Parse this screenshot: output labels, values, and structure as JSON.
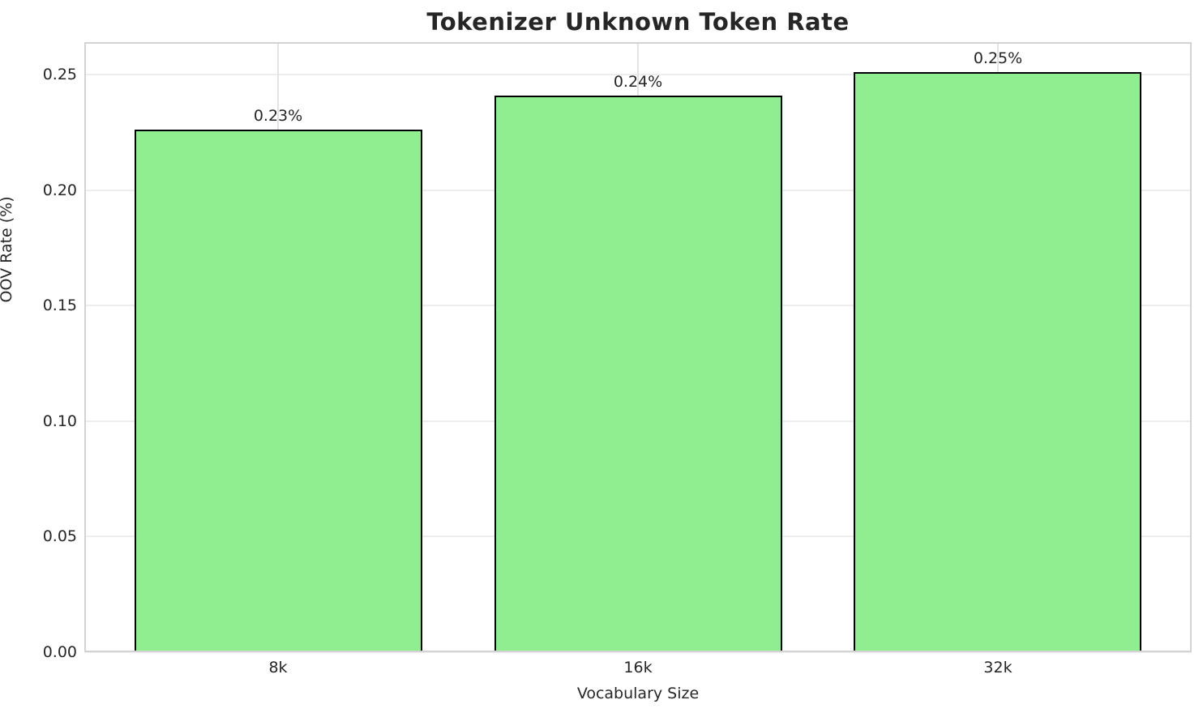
{
  "chart_data": {
    "type": "bar",
    "title": "Tokenizer Unknown Token Rate",
    "xlabel": "Vocabulary Size",
    "ylabel": "OOV Rate (%)",
    "categories": [
      "8k",
      "16k",
      "32k"
    ],
    "values": [
      0.226,
      0.241,
      0.251
    ],
    "bar_labels": [
      "0.23%",
      "0.24%",
      "0.25%"
    ],
    "ytick_values": [
      0.0,
      0.05,
      0.1,
      0.15,
      0.2,
      0.25
    ],
    "ytick_labels": [
      "0.00",
      "0.05",
      "0.10",
      "0.15",
      "0.20",
      "0.25"
    ],
    "ylim": [
      0,
      0.264
    ],
    "grid": true,
    "legend": false,
    "bar_color": "#90EE90",
    "bar_edge_color": "#000000",
    "grid_color": "#EDEDED",
    "spine_color": "#D3D3D3",
    "text_color": "#262626"
  }
}
